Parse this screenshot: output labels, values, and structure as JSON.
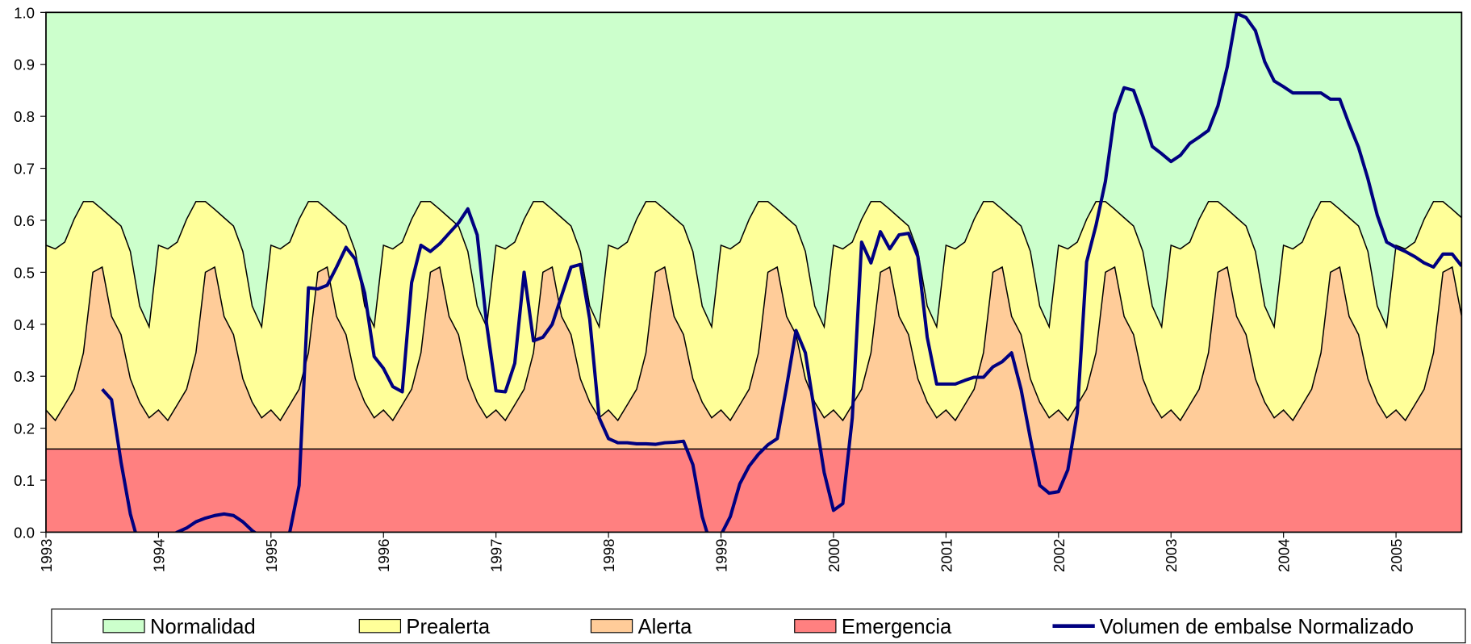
{
  "chart_data": {
    "type": "area",
    "x": [
      1993,
      1993.083,
      1993.167,
      1993.25,
      1993.333,
      1993.417,
      1993.5,
      1993.583,
      1993.667,
      1993.75,
      1993.833,
      1993.917,
      1994,
      1994.083,
      1994.167,
      1994.25,
      1994.333,
      1994.417,
      1994.5,
      1994.583,
      1994.667,
      1994.75,
      1994.833,
      1994.917,
      1995,
      1995.083,
      1995.167,
      1995.25,
      1995.333,
      1995.417,
      1995.5,
      1995.583,
      1995.667,
      1995.75,
      1995.833,
      1995.917,
      1996,
      1996.083,
      1996.167,
      1996.25,
      1996.333,
      1996.417,
      1996.5,
      1996.583,
      1996.667,
      1996.75,
      1996.833,
      1996.917,
      1997,
      1997.083,
      1997.167,
      1997.25,
      1997.333,
      1997.417,
      1997.5,
      1997.583,
      1997.667,
      1997.75,
      1997.833,
      1997.917,
      1998,
      1998.083,
      1998.167,
      1998.25,
      1998.333,
      1998.417,
      1998.5,
      1998.583,
      1998.667,
      1998.75,
      1998.833,
      1998.917,
      1999,
      1999.083,
      1999.167,
      1999.25,
      1999.333,
      1999.417,
      1999.5,
      1999.583,
      1999.667,
      1999.75,
      1999.833,
      1999.917,
      2000,
      2000.083,
      2000.167,
      2000.25,
      2000.333,
      2000.417,
      2000.5,
      2000.583,
      2000.667,
      2000.75,
      2000.833,
      2000.917,
      2001,
      2001.083,
      2001.167,
      2001.25,
      2001.333,
      2001.417,
      2001.5,
      2001.583,
      2001.667,
      2001.75,
      2001.833,
      2001.917,
      2002,
      2002.083,
      2002.167,
      2002.25,
      2002.333,
      2002.417,
      2002.5,
      2002.583,
      2002.667,
      2002.75,
      2002.833,
      2002.917,
      2003,
      2003.083,
      2003.167,
      2003.25,
      2003.333,
      2003.417,
      2003.5,
      2003.583,
      2003.667,
      2003.75,
      2003.833,
      2003.917,
      2004,
      2004.083,
      2004.167,
      2004.25,
      2004.333,
      2004.417,
      2004.5,
      2004.583,
      2004.667,
      2004.75,
      2004.833,
      2004.917,
      2005,
      2005.083,
      2005.167,
      2005.25,
      2005.333,
      2005.417,
      2005.5,
      2005.583
    ],
    "series": [
      {
        "name": "Normalidad",
        "type": "area",
        "color": "#ccffcc"
      },
      {
        "name": "Prealerta",
        "type": "area",
        "color": "#ffff99",
        "values": [
          0.552,
          0.545,
          0.558,
          0.602,
          0.636,
          0.636,
          0.621,
          0.605,
          0.589,
          0.54,
          0.435,
          0.395,
          0.552,
          0.545,
          0.558,
          0.602,
          0.636,
          0.636,
          0.621,
          0.605,
          0.589,
          0.54,
          0.435,
          0.395,
          0.552,
          0.545,
          0.558,
          0.602,
          0.636,
          0.636,
          0.621,
          0.605,
          0.589,
          0.54,
          0.435,
          0.395,
          0.552,
          0.545,
          0.558,
          0.602,
          0.636,
          0.636,
          0.621,
          0.605,
          0.589,
          0.54,
          0.435,
          0.395,
          0.552,
          0.545,
          0.558,
          0.602,
          0.636,
          0.636,
          0.621,
          0.605,
          0.589,
          0.54,
          0.435,
          0.395,
          0.552,
          0.545,
          0.558,
          0.602,
          0.636,
          0.636,
          0.621,
          0.605,
          0.589,
          0.54,
          0.435,
          0.395,
          0.552,
          0.545,
          0.558,
          0.602,
          0.636,
          0.636,
          0.621,
          0.605,
          0.589,
          0.54,
          0.435,
          0.395,
          0.552,
          0.545,
          0.558,
          0.602,
          0.636,
          0.636,
          0.621,
          0.605,
          0.589,
          0.54,
          0.435,
          0.395,
          0.552,
          0.545,
          0.558,
          0.602,
          0.636,
          0.636,
          0.621,
          0.605,
          0.589,
          0.54,
          0.435,
          0.395,
          0.552,
          0.545,
          0.558,
          0.602,
          0.636,
          0.636,
          0.621,
          0.605,
          0.589,
          0.54,
          0.435,
          0.395,
          0.552,
          0.545,
          0.558,
          0.602,
          0.636,
          0.636,
          0.621,
          0.605,
          0.589,
          0.54,
          0.435,
          0.395,
          0.552,
          0.545,
          0.558,
          0.602,
          0.636,
          0.636,
          0.621,
          0.605,
          0.589,
          0.54,
          0.435,
          0.395,
          0.552,
          0.545,
          0.558,
          0.602,
          0.636,
          0.636,
          0.621,
          0.605
        ]
      },
      {
        "name": "Alerta",
        "type": "area",
        "color": "#ffcc99",
        "values": [
          0.235,
          0.215,
          0.245,
          0.275,
          0.345,
          0.5,
          0.51,
          0.415,
          0.38,
          0.295,
          0.25,
          0.22,
          0.235,
          0.215,
          0.245,
          0.275,
          0.345,
          0.5,
          0.51,
          0.415,
          0.38,
          0.295,
          0.25,
          0.22,
          0.235,
          0.215,
          0.245,
          0.275,
          0.345,
          0.5,
          0.51,
          0.415,
          0.38,
          0.295,
          0.25,
          0.22,
          0.235,
          0.215,
          0.245,
          0.275,
          0.345,
          0.5,
          0.51,
          0.415,
          0.38,
          0.295,
          0.25,
          0.22,
          0.235,
          0.215,
          0.245,
          0.275,
          0.345,
          0.5,
          0.51,
          0.415,
          0.38,
          0.295,
          0.25,
          0.22,
          0.235,
          0.215,
          0.245,
          0.275,
          0.345,
          0.5,
          0.51,
          0.415,
          0.38,
          0.295,
          0.25,
          0.22,
          0.235,
          0.215,
          0.245,
          0.275,
          0.345,
          0.5,
          0.51,
          0.415,
          0.38,
          0.295,
          0.25,
          0.22,
          0.235,
          0.215,
          0.245,
          0.275,
          0.345,
          0.5,
          0.51,
          0.415,
          0.38,
          0.295,
          0.25,
          0.22,
          0.235,
          0.215,
          0.245,
          0.275,
          0.345,
          0.5,
          0.51,
          0.415,
          0.38,
          0.295,
          0.25,
          0.22,
          0.235,
          0.215,
          0.245,
          0.275,
          0.345,
          0.5,
          0.51,
          0.415,
          0.38,
          0.295,
          0.25,
          0.22,
          0.235,
          0.215,
          0.245,
          0.275,
          0.345,
          0.5,
          0.51,
          0.415,
          0.38,
          0.295,
          0.25,
          0.22,
          0.235,
          0.215,
          0.245,
          0.275,
          0.345,
          0.5,
          0.51,
          0.415,
          0.38,
          0.295,
          0.25,
          0.22,
          0.235,
          0.215,
          0.245,
          0.275,
          0.345,
          0.5,
          0.51,
          0.415
        ]
      },
      {
        "name": "Emergencia",
        "type": "area",
        "color": "#ff8080",
        "values": [
          0.16,
          0.16,
          0.16,
          0.16,
          0.16,
          0.16,
          0.16,
          0.16,
          0.16,
          0.16,
          0.16,
          0.16,
          0.16,
          0.16,
          0.16,
          0.16,
          0.16,
          0.16,
          0.16,
          0.16,
          0.16,
          0.16,
          0.16,
          0.16,
          0.16,
          0.16,
          0.16,
          0.16,
          0.16,
          0.16,
          0.16,
          0.16,
          0.16,
          0.16,
          0.16,
          0.16,
          0.16,
          0.16,
          0.16,
          0.16,
          0.16,
          0.16,
          0.16,
          0.16,
          0.16,
          0.16,
          0.16,
          0.16,
          0.16,
          0.16,
          0.16,
          0.16,
          0.16,
          0.16,
          0.16,
          0.16,
          0.16,
          0.16,
          0.16,
          0.16,
          0.16,
          0.16,
          0.16,
          0.16,
          0.16,
          0.16,
          0.16,
          0.16,
          0.16,
          0.16,
          0.16,
          0.16,
          0.16,
          0.16,
          0.16,
          0.16,
          0.16,
          0.16,
          0.16,
          0.16,
          0.16,
          0.16,
          0.16,
          0.16,
          0.16,
          0.16,
          0.16,
          0.16,
          0.16,
          0.16,
          0.16,
          0.16,
          0.16,
          0.16,
          0.16,
          0.16,
          0.16,
          0.16,
          0.16,
          0.16,
          0.16,
          0.16,
          0.16,
          0.16,
          0.16,
          0.16,
          0.16,
          0.16,
          0.16,
          0.16,
          0.16,
          0.16,
          0.16,
          0.16,
          0.16,
          0.16,
          0.16,
          0.16,
          0.16,
          0.16,
          0.16,
          0.16,
          0.16,
          0.16,
          0.16,
          0.16,
          0.16,
          0.16,
          0.16,
          0.16,
          0.16,
          0.16,
          0.16,
          0.16,
          0.16,
          0.16,
          0.16,
          0.16,
          0.16,
          0.16,
          0.16,
          0.16,
          0.16,
          0.16,
          0.16,
          0.16,
          0.16,
          0.16,
          0.16,
          0.16,
          0.16,
          0.16
        ]
      },
      {
        "name": "Volumen de embalse Normalizado",
        "type": "line",
        "color": "#000080",
        "values": [
          null,
          null,
          null,
          null,
          null,
          null,
          0.275,
          0.255,
          0.135,
          0.035,
          -0.03,
          -0.05,
          -0.03,
          -0.01,
          0.0,
          0.008,
          0.02,
          0.027,
          0.032,
          0.035,
          0.032,
          0.02,
          0.003,
          -0.01,
          -0.03,
          -0.02,
          0.0,
          0.09,
          0.47,
          0.468,
          0.475,
          0.51,
          0.548,
          0.525,
          0.46,
          0.338,
          0.315,
          0.28,
          0.27,
          0.48,
          0.552,
          0.54,
          0.555,
          0.575,
          0.595,
          0.622,
          0.572,
          0.4,
          0.272,
          0.27,
          0.325,
          0.5,
          0.368,
          0.375,
          0.4,
          0.455,
          0.51,
          0.515,
          0.41,
          0.22,
          0.18,
          0.172,
          0.172,
          0.17,
          0.17,
          0.169,
          0.172,
          0.173,
          0.175,
          0.13,
          0.03,
          -0.03,
          -0.005,
          0.03,
          0.093,
          0.127,
          0.15,
          0.168,
          0.18,
          0.28,
          0.388,
          0.345,
          0.23,
          0.115,
          0.042,
          0.055,
          0.22,
          0.558,
          0.518,
          0.578,
          0.545,
          0.572,
          0.575,
          0.53,
          0.375,
          0.285,
          0.285,
          0.285,
          0.292,
          0.298,
          0.298,
          0.318,
          0.328,
          0.345,
          0.275,
          0.18,
          0.09,
          0.075,
          0.078,
          0.12,
          0.23,
          0.52,
          0.59,
          0.675,
          0.805,
          0.855,
          0.85,
          0.8,
          0.742,
          0.728,
          0.713,
          0.725,
          0.748,
          0.76,
          0.773,
          0.82,
          0.895,
          0.998,
          0.99,
          0.965,
          0.905,
          0.868,
          0.857,
          0.845,
          0.845,
          0.845,
          0.845,
          0.833,
          0.833,
          0.785,
          0.74,
          0.68,
          0.61,
          0.558,
          0.548,
          0.54,
          0.53,
          0.518,
          0.51,
          0.535,
          0.535,
          0.512
        ]
      }
    ],
    "xlim": [
      1993,
      2005.583
    ],
    "xticks": [
      1993,
      1994,
      1995,
      1996,
      1997,
      1998,
      1999,
      2000,
      2001,
      2002,
      2003,
      2004,
      2005
    ],
    "ylim": [
      0,
      1
    ],
    "yticks": [
      {
        "value": 0,
        "label": "0.0"
      },
      0.1,
      0.2,
      0.3,
      0.4,
      0.5,
      0.6,
      0.7,
      0.8,
      0.9,
      {
        "value": 1,
        "label": "1.0"
      }
    ],
    "legend": "bottom"
  }
}
